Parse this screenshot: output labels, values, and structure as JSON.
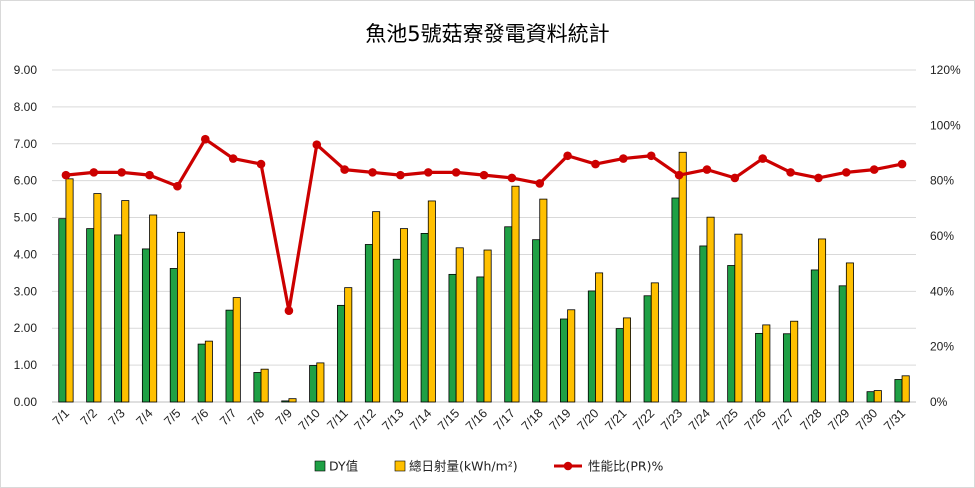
{
  "chart_data": {
    "type": "bar+line",
    "title": "魚池5號菇寮發電資料統計",
    "categories": [
      "7/1",
      "7/2",
      "7/3",
      "7/4",
      "7/5",
      "7/6",
      "7/7",
      "7/8",
      "7/9",
      "7/10",
      "7/11",
      "7/12",
      "7/13",
      "7/14",
      "7/15",
      "7/16",
      "7/17",
      "7/18",
      "7/19",
      "7/20",
      "7/21",
      "7/22",
      "7/23",
      "7/24",
      "7/25",
      "7/26",
      "7/27",
      "7/28",
      "7/29",
      "7/30",
      "7/31"
    ],
    "series": [
      {
        "name": "DY值",
        "type": "bar",
        "axis": "left",
        "color": "#1fa045",
        "values": [
          4.97,
          4.7,
          4.53,
          4.15,
          3.62,
          1.57,
          2.49,
          0.8,
          0.03,
          0.99,
          2.62,
          4.27,
          3.87,
          4.57,
          3.46,
          3.39,
          4.75,
          4.4,
          2.25,
          3.01,
          1.99,
          2.88,
          5.53,
          4.23,
          3.7,
          1.86,
          1.85,
          3.58,
          3.15,
          0.28,
          0.61
        ]
      },
      {
        "name": "總日射量(kWh/m²)",
        "type": "bar",
        "axis": "left",
        "color": "#ffc000",
        "values": [
          6.05,
          5.65,
          5.46,
          5.07,
          4.6,
          1.65,
          2.83,
          0.89,
          0.09,
          1.06,
          3.1,
          5.16,
          4.7,
          5.45,
          4.18,
          4.12,
          5.85,
          5.5,
          2.5,
          3.5,
          2.28,
          3.23,
          6.77,
          5.01,
          4.55,
          2.09,
          2.19,
          4.42,
          3.77,
          0.31,
          0.71
        ]
      },
      {
        "name": "性能比(PR)%",
        "type": "line",
        "axis": "right",
        "color": "#cc0000",
        "values": [
          82,
          83,
          83,
          82,
          78,
          95,
          88,
          86,
          33,
          93,
          84,
          83,
          82,
          83,
          83,
          82,
          81,
          79,
          89,
          86,
          88,
          89,
          82,
          84,
          81,
          88,
          83,
          81,
          83,
          84,
          86
        ]
      }
    ],
    "left_axis": {
      "ylim": [
        0,
        9
      ],
      "ticks": [
        "0.00",
        "1.00",
        "2.00",
        "3.00",
        "4.00",
        "5.00",
        "6.00",
        "7.00",
        "8.00",
        "9.00"
      ]
    },
    "right_axis": {
      "ylim": [
        0,
        120
      ],
      "ticks": [
        "0%",
        "20%",
        "40%",
        "60%",
        "80%",
        "100%",
        "120%"
      ]
    },
    "grid": "horizontal",
    "legend": "bottom"
  }
}
